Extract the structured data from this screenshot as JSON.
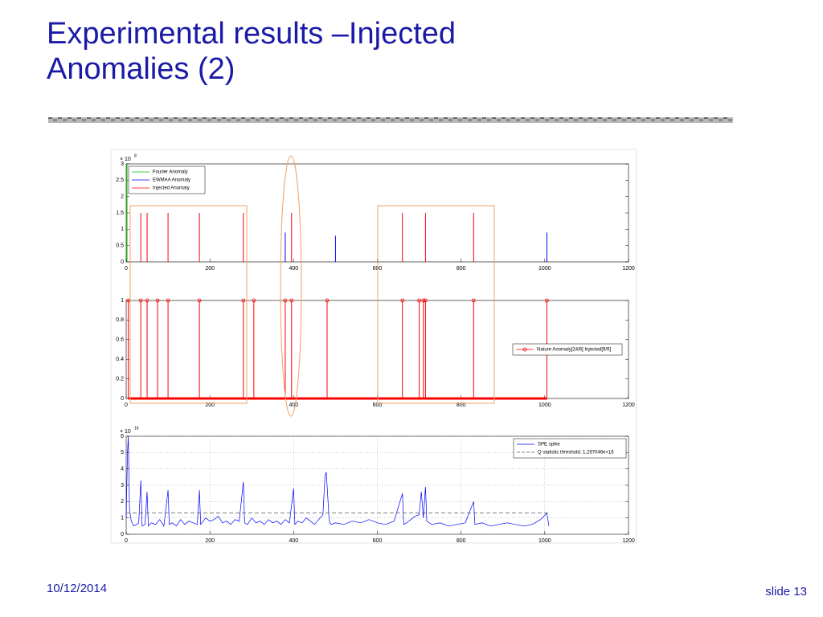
{
  "header": {
    "title": "Experimental results –Injected Anomalies (2)"
  },
  "footer": {
    "date": "10/12/2014",
    "slide": "slide 13"
  },
  "chart_data": [
    {
      "type": "stem",
      "multiplier": "× 10",
      "multiplier_exponent": "8",
      "xlim": [
        0,
        1200
      ],
      "xticks": [
        0,
        200,
        400,
        600,
        800,
        1000,
        1200
      ],
      "ylim": [
        0,
        3
      ],
      "yticks": [
        0,
        0.5,
        1,
        1.5,
        2,
        2.5,
        3
      ],
      "grid": false,
      "legend": "upper left",
      "series": [
        {
          "name": "Fourier Anomaly",
          "color": "#00cc00",
          "x": [
            2
          ],
          "values": [
            3
          ]
        },
        {
          "name": "EWMAA Anomaly",
          "color": "#0000ff",
          "x": [
            380,
            500,
            1005
          ],
          "values": [
            0.9,
            0.8,
            0.9
          ]
        },
        {
          "name": "Injected Anomaly",
          "color": "#ff0000",
          "x": [
            35,
            50,
            100,
            175,
            280,
            395,
            660,
            715,
            830
          ],
          "values": [
            1.5,
            1.5,
            1.5,
            1.5,
            1.5,
            1.5,
            1.5,
            1.5,
            1.5
          ]
        }
      ]
    },
    {
      "type": "stem",
      "xlim": [
        0,
        1200
      ],
      "xticks": [
        0,
        200,
        400,
        600,
        800,
        1000,
        1200
      ],
      "ylim": [
        0,
        1
      ],
      "yticks": [
        0,
        0.2,
        0.4,
        0.6,
        0.8,
        1
      ],
      "grid": false,
      "legend": "right",
      "baseline": true,
      "series": [
        {
          "name": "Nature Anomaly[24/6] Injected[9/9]",
          "color": "#ff0000",
          "marker": "o",
          "x": [
            5,
            35,
            50,
            75,
            100,
            175,
            280,
            305,
            380,
            395,
            480,
            660,
            700,
            710,
            715,
            830,
            1005
          ],
          "values": [
            1,
            1,
            1,
            1,
            1,
            1,
            1,
            1,
            1,
            1,
            1,
            1,
            1,
            1,
            1,
            1,
            1
          ]
        }
      ]
    },
    {
      "type": "line",
      "multiplier": "× 10",
      "multiplier_exponent": "16",
      "xlim": [
        0,
        1200
      ],
      "xticks": [
        0,
        200,
        400,
        600,
        800,
        1000,
        1200
      ],
      "ylim": [
        0,
        6
      ],
      "yticks": [
        0,
        1,
        2,
        3,
        4,
        5,
        6
      ],
      "grid": true,
      "legend": "upper right",
      "series": [
        {
          "name": "SPE spike",
          "color": "#0000ff",
          "x": [
            0,
            3,
            5,
            8,
            12,
            18,
            25,
            30,
            35,
            38,
            45,
            50,
            53,
            60,
            70,
            80,
            90,
            100,
            103,
            110,
            120,
            130,
            140,
            150,
            160,
            170,
            175,
            178,
            190,
            200,
            210,
            220,
            230,
            240,
            250,
            260,
            270,
            280,
            283,
            290,
            300,
            310,
            320,
            330,
            340,
            350,
            360,
            370,
            380,
            390,
            400,
            403,
            410,
            420,
            430,
            440,
            450,
            460,
            470,
            475,
            478,
            485,
            490,
            500,
            520,
            540,
            560,
            580,
            600,
            620,
            640,
            660,
            663,
            670,
            680,
            690,
            700,
            705,
            710,
            715,
            718,
            730,
            750,
            770,
            790,
            810,
            830,
            833,
            850,
            870,
            890,
            910,
            930,
            950,
            970,
            990,
            1005,
            1010
          ],
          "values": [
            1.0,
            5.0,
            6.0,
            1.5,
            0.8,
            0.5,
            0.6,
            0.7,
            3.3,
            0.5,
            0.6,
            2.6,
            0.5,
            0.7,
            0.6,
            0.9,
            0.5,
            2.7,
            0.6,
            0.7,
            0.5,
            0.9,
            0.6,
            0.8,
            0.7,
            0.6,
            2.7,
            0.6,
            1.0,
            0.8,
            0.9,
            1.1,
            0.7,
            0.8,
            0.6,
            0.9,
            0.8,
            3.2,
            0.7,
            0.6,
            1.0,
            0.7,
            0.8,
            0.6,
            0.9,
            0.7,
            0.8,
            0.6,
            0.9,
            0.7,
            2.8,
            0.6,
            0.8,
            0.7,
            1.0,
            0.8,
            0.6,
            0.9,
            1.2,
            3.6,
            3.8,
            0.8,
            0.6,
            0.7,
            0.6,
            0.8,
            0.7,
            0.9,
            0.7,
            0.6,
            0.8,
            2.5,
            0.6,
            0.7,
            0.9,
            1.1,
            1.2,
            2.6,
            1.0,
            2.9,
            0.8,
            0.6,
            0.7,
            0.5,
            0.6,
            0.7,
            2.0,
            0.6,
            0.7,
            0.5,
            0.6,
            0.7,
            0.6,
            0.5,
            0.6,
            0.9,
            1.3,
            0.5
          ]
        },
        {
          "name": "Q statistic threshold: 1.297046e+16",
          "color": "#555555",
          "linestyle": "dashed",
          "x": [
            0,
            1010
          ],
          "values": [
            1.297046,
            1.297046
          ]
        }
      ]
    }
  ]
}
